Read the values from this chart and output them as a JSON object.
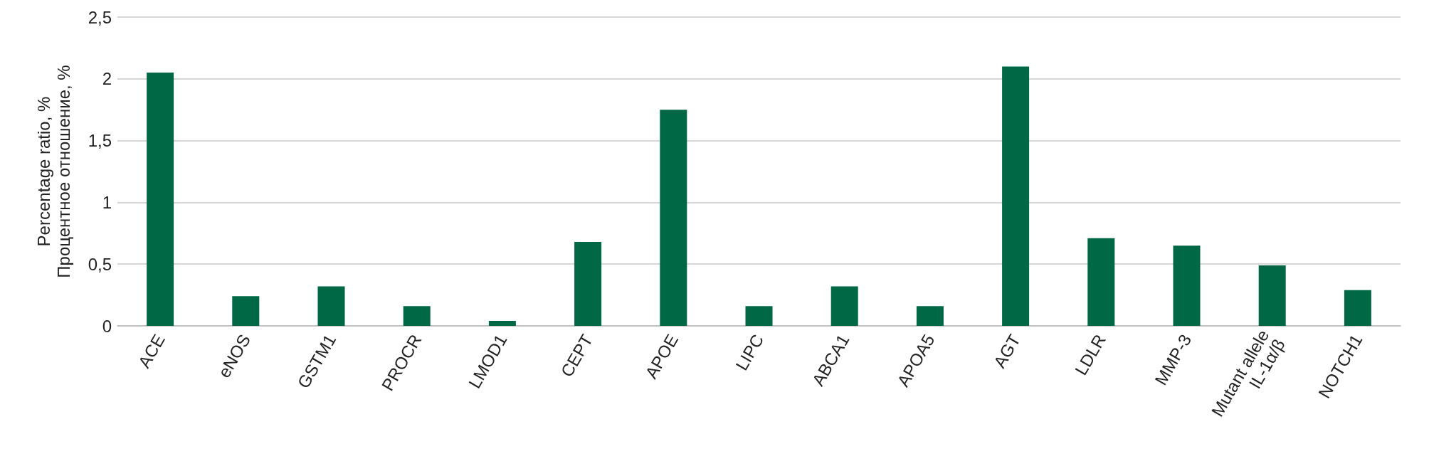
{
  "chart_data": {
    "type": "bar",
    "ylabel": "Percentage ratio, %\nПроцентное отношение, %",
    "categories": [
      "ACE",
      "eNOS",
      "GSTM1",
      "PROCR",
      "LMOD1",
      "CEPT",
      "APOE",
      "LIPC",
      "ABCA1",
      "APOA5",
      "AGT",
      "LDLR",
      "MMP-3",
      "Mutant allele\nIL-1α/β",
      "NOTCH1"
    ],
    "values": [
      2.05,
      0.24,
      0.32,
      0.16,
      0.04,
      0.68,
      1.75,
      0.16,
      0.32,
      0.16,
      2.1,
      0.71,
      0.65,
      0.49,
      0.29
    ],
    "color": "#006845",
    "ylim": [
      0,
      2.5
    ],
    "yticks": [
      0,
      {
        "value": 0.5,
        "label": "0,5"
      },
      1,
      {
        "value": 1.5,
        "label": "1,5"
      },
      2,
      {
        "value": 2.5,
        "label": "2,5"
      }
    ],
    "grid": "y"
  }
}
